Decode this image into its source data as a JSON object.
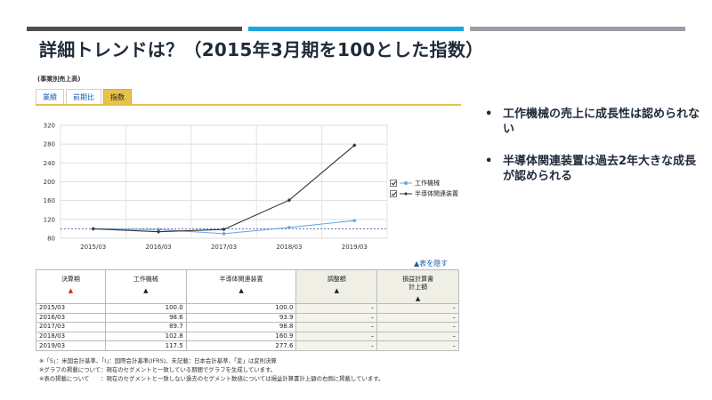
{
  "slide": {
    "title": "詳細トレンドは？（2015年3月期を100とした指数）",
    "bar_colors": [
      "#4d4f53",
      "#1ba6e0",
      "#9a9ea4"
    ]
  },
  "panel": {
    "label": "(事業別売上高)",
    "tabs": [
      {
        "label": "業績",
        "active": false
      },
      {
        "label": "前期比",
        "active": false
      },
      {
        "label": "指数",
        "active": true
      }
    ],
    "hide_link": "▲表を隠す"
  },
  "chart_data": {
    "type": "line",
    "categories": [
      "2015/03",
      "2016/03",
      "2017/03",
      "2018/03",
      "2019/03"
    ],
    "series": [
      {
        "name": "工作機械",
        "values": [
          100.0,
          98.6,
          89.7,
          102.8,
          117.5
        ],
        "color": "#6aa6e0"
      },
      {
        "name": "半導体関連装置",
        "values": [
          100.0,
          93.9,
          98.8,
          160.9,
          277.6
        ],
        "color": "#333333"
      }
    ],
    "yticks": [
      80,
      120,
      160,
      200,
      240,
      280,
      320
    ],
    "ylim": [
      80,
      320
    ],
    "reference_line": 100,
    "grid": true,
    "legend": "right"
  },
  "table": {
    "headers": [
      {
        "label": "決算期",
        "sort": "▲",
        "sort_color": "#e02020"
      },
      {
        "label": "工作機械",
        "sort": "▲"
      },
      {
        "label": "半導体関連装置",
        "sort": "▲"
      },
      {
        "label": "調整額",
        "sort": "▲"
      },
      {
        "label": "損益計算書\n計上額",
        "sort": "▲"
      }
    ],
    "rows": [
      [
        "2015/03",
        "100.0",
        "100.0",
        "–",
        "–"
      ],
      [
        "2016/03",
        "98.6",
        "93.9",
        "–",
        "–"
      ],
      [
        "2017/03",
        "89.7",
        "98.8",
        "–",
        "–"
      ],
      [
        "2018/03",
        "102.8",
        "160.9",
        "–",
        "–"
      ],
      [
        "2019/03",
        "117.5",
        "277.6",
        "–",
        "–"
      ]
    ]
  },
  "notes": [
    "※「S」：米国会計基準、「I」：国際会計基準(IFRS)、未記載：日本会計基準、「変」は変則決算",
    "※グラフの掲載について：現在のセグメントと一致している期間でグラフを生成しています。",
    "※表の掲載について　　：現在のセグメントと一致しない過去のセグメント数値については損益計算書計上額の右側に掲載しています。"
  ],
  "bullets": [
    "工作機械の売上に成長性は認められない",
    "半導体関連装置は過去2年大きな成長が認められる"
  ]
}
